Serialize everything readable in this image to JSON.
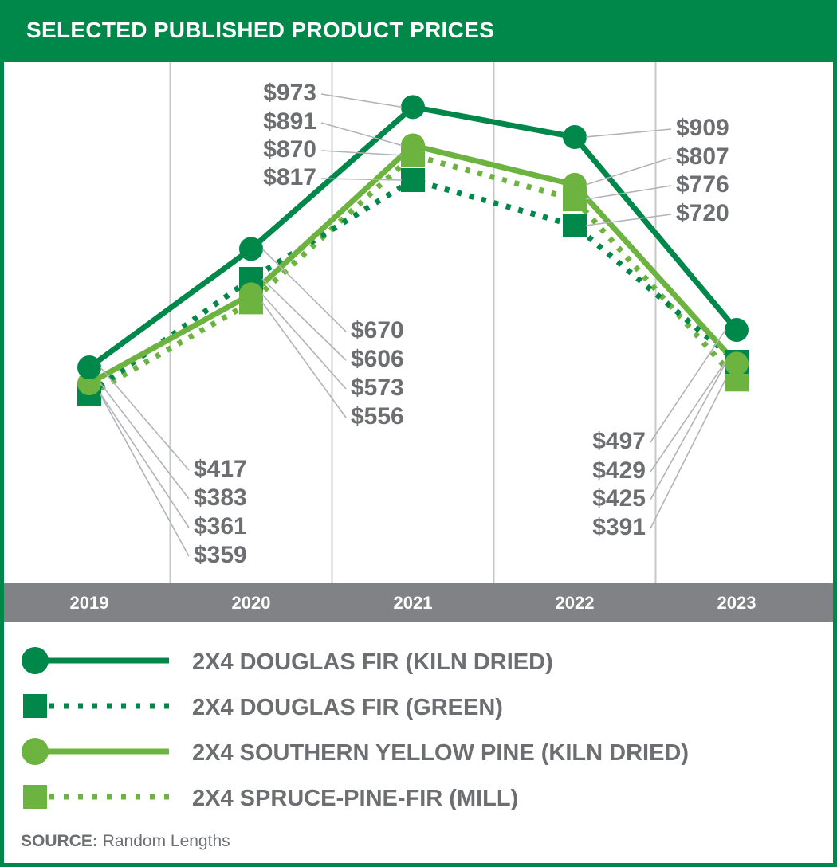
{
  "header": {
    "title": "SELECTED PUBLISHED PRODUCT PRICES"
  },
  "source": {
    "label": "SOURCE:",
    "text": "Random Lengths"
  },
  "colors": {
    "dark_green": "#00874a",
    "light_green": "#6db33f",
    "axis_band": "#808285",
    "label_gray": "#6d6e71",
    "gridline": "#c7c8ca"
  },
  "chart_data": {
    "type": "line",
    "title": "SELECTED PUBLISHED PRODUCT PRICES",
    "categories": [
      "2019",
      "2020",
      "2021",
      "2022",
      "2023"
    ],
    "ylabel": "",
    "xlabel": "",
    "grid": "vertical",
    "legend_position": "bottom",
    "series": [
      {
        "name": "2X4 DOUGLAS FIR (KILN DRIED)",
        "values": [
          417,
          670,
          973,
          909,
          497
        ],
        "labels": [
          "$417",
          "$670",
          "$973",
          "$909",
          "$497"
        ],
        "color": "#00874a",
        "marker": "circle",
        "line": "solid"
      },
      {
        "name": "2X4 DOUGLAS FIR (GREEN)",
        "values": [
          361,
          606,
          817,
          720,
          429
        ],
        "labels": [
          "$361",
          "$606",
          "$817",
          "$720",
          "$429"
        ],
        "color": "#00874a",
        "marker": "square",
        "line": "dotted"
      },
      {
        "name": "2X4 SOUTHERN YELLOW PINE (KILN DRIED)",
        "values": [
          383,
          573,
          891,
          807,
          425
        ],
        "labels": [
          "$383",
          "$573",
          "$891",
          "$807",
          "$425"
        ],
        "color": "#6db33f",
        "marker": "circle",
        "line": "solid"
      },
      {
        "name": "2X4 SPRUCE-PINE-FIR (MILL)",
        "values": [
          359,
          556,
          870,
          776,
          391
        ],
        "labels": [
          "$359",
          "$556",
          "$870",
          "$776",
          "$391"
        ],
        "color": "#6db33f",
        "marker": "square",
        "line": "dotted"
      }
    ]
  }
}
